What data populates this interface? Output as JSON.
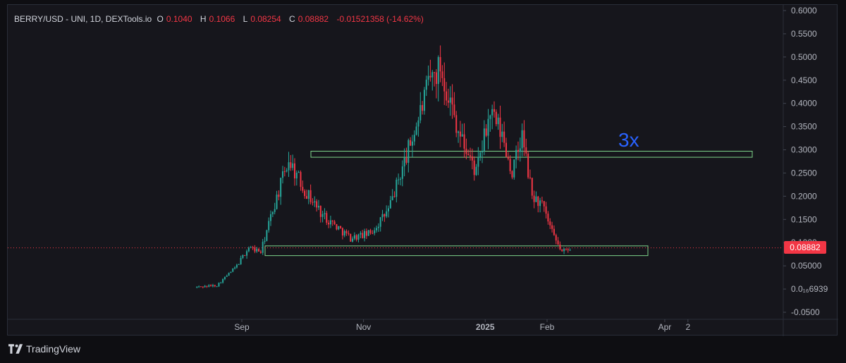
{
  "legend": {
    "title": "BERRY/USD - UNI, 1D, DEXTools.io",
    "open_key": "O",
    "open_value": "0.1040",
    "high_key": "H",
    "high_value": "0.1066",
    "low_key": "L",
    "low_value": "0.08254",
    "close_key": "C",
    "close_value": "0.08882",
    "change": "-0.01521358 (-14.62%)"
  },
  "price_badge": "0.08882",
  "annotation": "3x",
  "brand": "TradingView",
  "colors": {
    "up": "#26a69a",
    "down": "#f23645",
    "zone": "#7ed48a",
    "annotation": "#2962ff",
    "price_line": "#f23645"
  },
  "chart_data": {
    "type": "candlestick",
    "symbol": "BERRY/USD",
    "timeframe": "1D",
    "ylim": [
      -0.05,
      0.6
    ],
    "y_tick_labels": [
      "0.6000",
      "0.5500",
      "0.5000",
      "0.4500",
      "0.4000",
      "0.3500",
      "0.3000",
      "0.2500",
      "0.2000",
      "0.1500",
      "0.1000",
      "0.05000",
      "0.0₁₆6939",
      "-0.0500"
    ],
    "x_tick_labels": [
      "Sep",
      "Nov",
      "2025",
      "Feb",
      "Apr",
      "2"
    ],
    "last_price": 0.08882,
    "zones": [
      {
        "name": "resistance-zone",
        "low": 0.284,
        "high": 0.297
      },
      {
        "name": "support-zone",
        "low": 0.072,
        "high": 0.093
      }
    ],
    "trend_path": [
      {
        "date": "2024-08-09",
        "value": 0.004
      },
      {
        "date": "2024-08-20",
        "value": 0.008
      },
      {
        "date": "2024-08-30",
        "value": 0.05
      },
      {
        "date": "2024-09-05",
        "value": 0.09
      },
      {
        "date": "2024-09-11",
        "value": 0.08
      },
      {
        "date": "2024-09-17",
        "value": 0.17
      },
      {
        "date": "2024-09-25",
        "value": 0.28
      },
      {
        "date": "2024-10-02",
        "value": 0.22
      },
      {
        "date": "2024-10-12",
        "value": 0.16
      },
      {
        "date": "2024-10-26",
        "value": 0.11
      },
      {
        "date": "2024-11-05",
        "value": 0.12
      },
      {
        "date": "2024-11-14",
        "value": 0.17
      },
      {
        "date": "2024-11-24",
        "value": 0.3
      },
      {
        "date": "2024-12-05",
        "value": 0.45
      },
      {
        "date": "2024-12-10",
        "value": 0.48
      },
      {
        "date": "2024-12-20",
        "value": 0.33
      },
      {
        "date": "2024-12-28",
        "value": 0.25
      },
      {
        "date": "2025-01-04",
        "value": 0.38
      },
      {
        "date": "2025-01-10",
        "value": 0.33
      },
      {
        "date": "2025-01-15",
        "value": 0.25
      },
      {
        "date": "2025-01-20",
        "value": 0.33
      },
      {
        "date": "2025-01-25",
        "value": 0.2
      },
      {
        "date": "2025-01-30",
        "value": 0.18
      },
      {
        "date": "2025-02-05",
        "value": 0.11
      },
      {
        "date": "2025-02-09",
        "value": 0.08
      },
      {
        "date": "2025-02-13",
        "value": 0.089
      }
    ]
  }
}
